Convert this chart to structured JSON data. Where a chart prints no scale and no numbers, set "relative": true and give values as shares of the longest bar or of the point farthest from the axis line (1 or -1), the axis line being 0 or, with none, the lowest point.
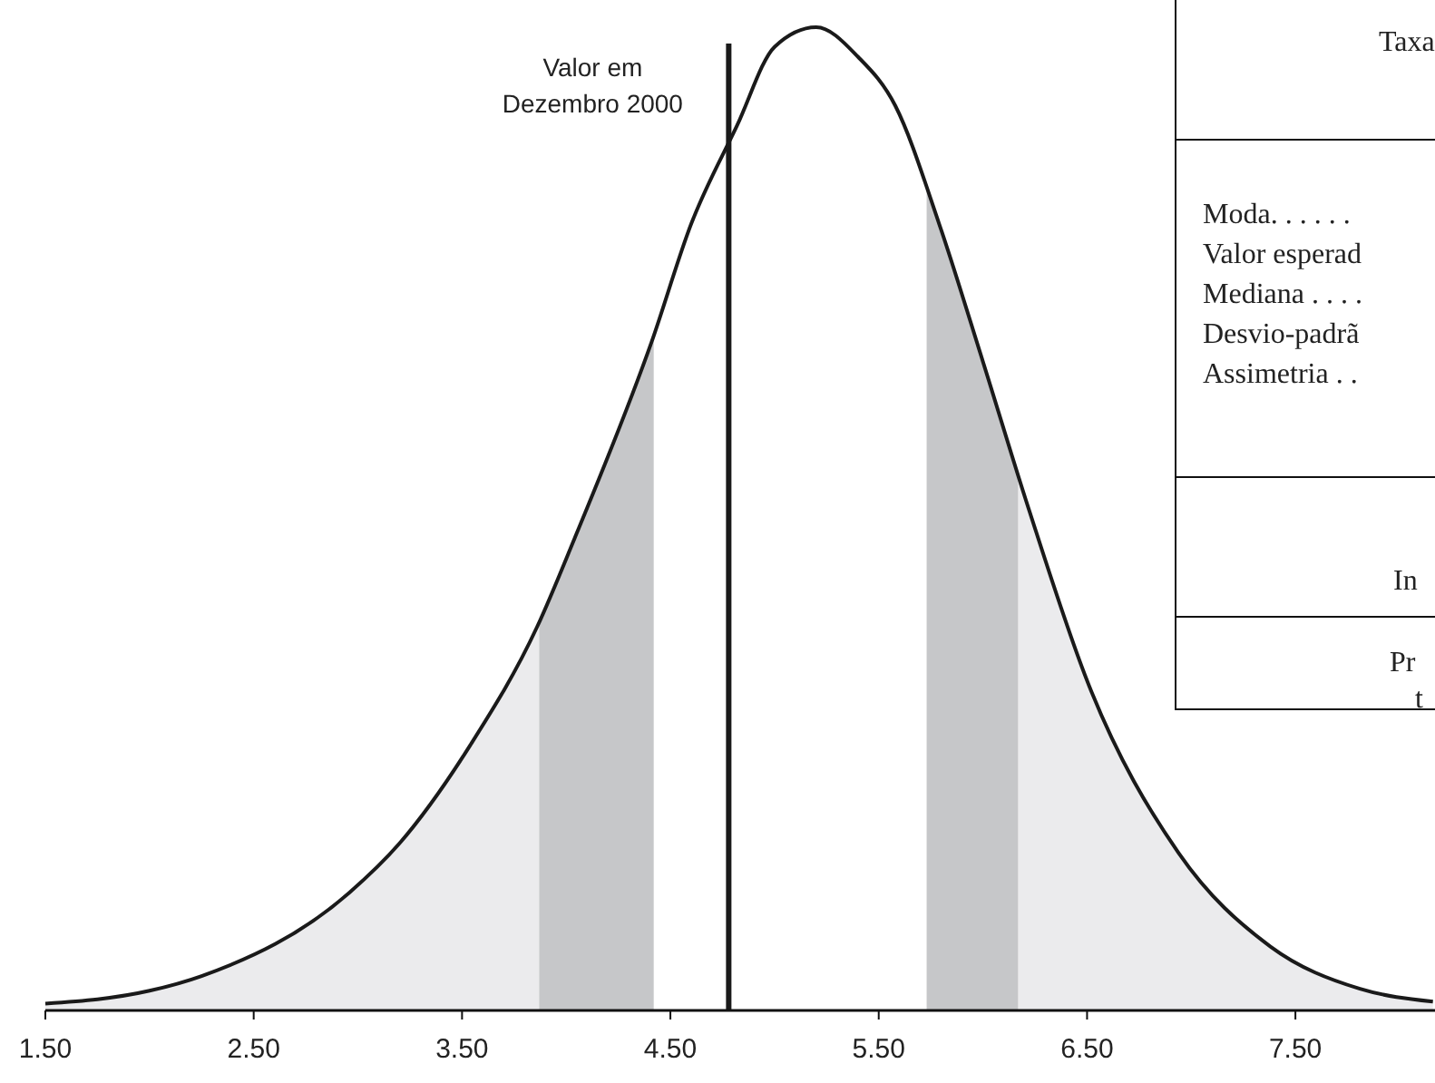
{
  "chart_data": {
    "type": "line",
    "relative": true,
    "x": [
      1.5,
      2.0,
      2.25,
      2.96,
      3.2,
      3.54,
      3.86,
      4.04,
      4.41,
      4.6,
      4.82,
      5.0,
      5.2,
      5.4,
      5.58,
      5.79,
      6.0,
      6.22,
      6.51,
      6.94,
      7.38,
      7.81,
      8.16
    ],
    "series": [
      {
        "color": "#1a1a1a",
        "values": [
          0.007,
          0.02,
          0.035,
          0.12,
          0.17,
          0.27,
          0.39,
          0.48,
          0.68,
          0.8,
          0.9,
          0.98,
          1.0,
          0.97,
          0.92,
          0.8,
          0.66,
          0.51,
          0.33,
          0.16,
          0.065,
          0.022,
          0.009
        ]
      }
    ],
    "xlim": [
      1.5,
      8.17
    ],
    "xticks": [
      {
        "value": 1.5,
        "label": "1.50"
      },
      {
        "value": 2.5,
        "label": "2.50"
      },
      {
        "value": 3.5,
        "label": "3.50"
      },
      {
        "value": 4.5,
        "label": "4.50"
      },
      {
        "value": 5.5,
        "label": "5.50"
      },
      {
        "value": 6.5,
        "label": "6.50"
      },
      {
        "value": 7.5,
        "label": "7.50"
      }
    ],
    "bands": [
      {
        "axis": "x",
        "from": 1.5,
        "to": 3.87,
        "color": "#ebebed"
      },
      {
        "axis": "x",
        "from": 3.87,
        "to": 4.42,
        "color": "#c6c7c9"
      },
      {
        "axis": "x",
        "from": 5.73,
        "to": 6.17,
        "color": "#c6c7c9"
      },
      {
        "axis": "x",
        "from": 6.17,
        "to": 8.17,
        "color": "#ebebed"
      }
    ],
    "ref_lines": [
      {
        "axis": "x",
        "value": 4.78,
        "label": "Valor em\nDezembro 2000",
        "color": "#1a1a1a"
      }
    ],
    "annotations": [
      "Taxa",
      "Moda. . . . . .",
      "Valor esperad",
      "Mediana . . . .",
      "Desvio-padrã",
      "Assimetria . .",
      "In",
      "Pr",
      "t"
    ],
    "grid": false,
    "marker": "none",
    "line_style": "solid"
  }
}
